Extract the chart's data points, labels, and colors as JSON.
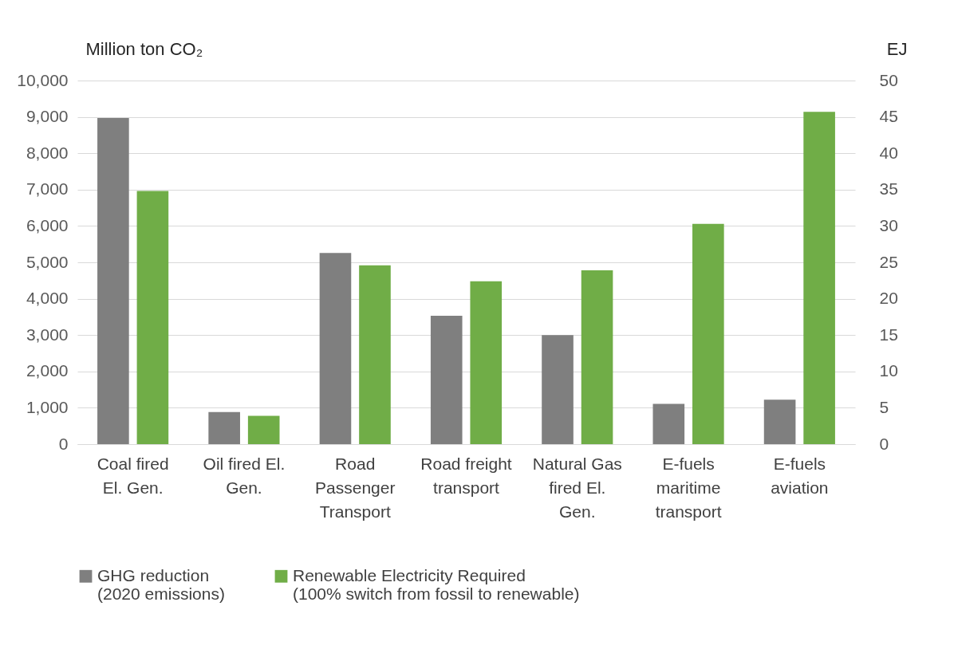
{
  "chart_data": {
    "type": "bar",
    "categories": [
      "Coal fired El. Gen.",
      "Oil fired El. Gen.",
      "Road Passenger Transport",
      "Road freight transport",
      "Natural Gas fired El. Gen.",
      "E-fuels maritime transport",
      "E-fuels aviation"
    ],
    "series": [
      {
        "name": "GHG reduction (2020 emissions)",
        "color": "#7f7f7f",
        "values": [
          8970,
          880,
          5260,
          3530,
          3000,
          1110,
          1220
        ]
      },
      {
        "name": "Renewable Electricity Required (100% switch from fossil to renewable)",
        "color": "#70ad47",
        "axis": "y2",
        "values": [
          34.8,
          3.9,
          24.6,
          22.4,
          23.9,
          30.3,
          45.7
        ]
      }
    ],
    "ylabel": "Million ton CO₂",
    "y2label": "EJ",
    "ylim": [
      0,
      10000
    ],
    "yticks": [
      0,
      {
        "value": 1000,
        "label": "1,000"
      },
      {
        "value": 2000,
        "label": "2,000"
      },
      {
        "value": 3000,
        "label": "3,000"
      },
      {
        "value": 4000,
        "label": "4,000"
      },
      {
        "value": 5000,
        "label": "5,000"
      },
      {
        "value": 6000,
        "label": "6,000"
      },
      {
        "value": 7000,
        "label": "7,000"
      },
      {
        "value": 8000,
        "label": "8,000"
      },
      {
        "value": 9000,
        "label": "9,000"
      },
      {
        "value": 10000,
        "label": "10,000"
      }
    ],
    "y2lim": [
      0,
      50
    ],
    "y2ticks": [
      0,
      5,
      10,
      15,
      20,
      25,
      30,
      35,
      40,
      45,
      50
    ],
    "grid": "y",
    "legend": "bottom"
  }
}
